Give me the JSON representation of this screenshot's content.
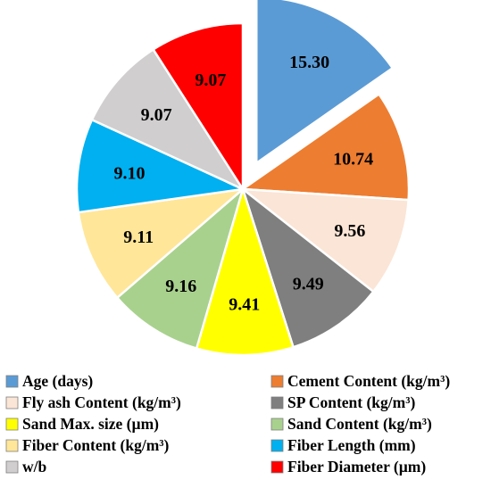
{
  "chart_data": {
    "type": "pie",
    "title": "",
    "exploded_slice": 0,
    "legend_position": "bottom",
    "legend_columns": 2,
    "slices": [
      {
        "label": "Age (days)",
        "value": 15.3,
        "display": "15.30",
        "color": "#5B9BD5"
      },
      {
        "label": "Cement Content (kg/m³)",
        "value": 10.74,
        "display": "10.74",
        "color": "#ED7D31"
      },
      {
        "label": "Fly ash Content (kg/m³)",
        "value": 9.56,
        "display": "9.56",
        "color": "#FBE5D6"
      },
      {
        "label": "SP Content  (kg/m³)",
        "value": 9.49,
        "display": "9.49",
        "color": "#7F7F7F"
      },
      {
        "label": "Sand Max. size (µm)",
        "value": 9.41,
        "display": "9.41",
        "color": "#FFFF00"
      },
      {
        "label": "Sand Content  (kg/m³)",
        "value": 9.16,
        "display": "9.16",
        "color": "#A9D18E"
      },
      {
        "label": "Fiber Content (kg/m³)",
        "value": 9.11,
        "display": "9.11",
        "color": "#FFE699"
      },
      {
        "label": "Fiber Length (mm)",
        "value": 9.1,
        "display": "9.10",
        "color": "#00B0F0"
      },
      {
        "label": "w/b",
        "value": 9.07,
        "display": "9.07",
        "color": "#D0CECE"
      },
      {
        "label": "Fiber Diameter (µm)",
        "value": 9.07,
        "display": "9.07",
        "color": "#FF0000"
      }
    ]
  }
}
